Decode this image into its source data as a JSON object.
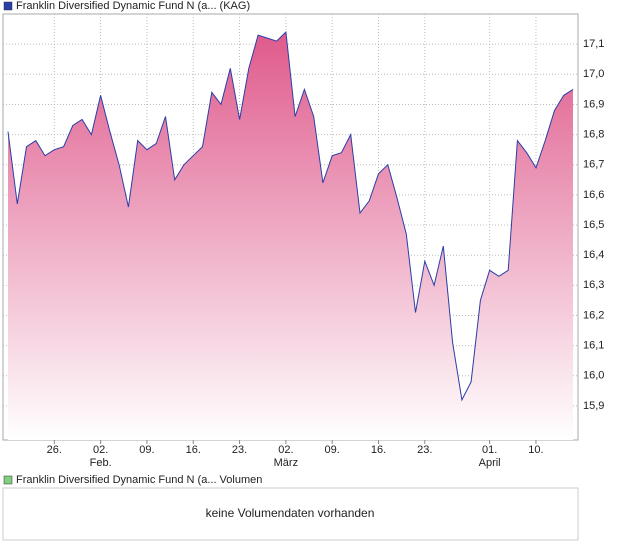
{
  "chart_data": {
    "type": "area",
    "categories": [
      null,
      null,
      null,
      null,
      null,
      "26.",
      null,
      null,
      null,
      null,
      "02.",
      null,
      null,
      null,
      null,
      "09.",
      null,
      null,
      null,
      null,
      "16.",
      null,
      null,
      null,
      null,
      "23.",
      null,
      null,
      null,
      null,
      "02.",
      null,
      null,
      null,
      null,
      "09.",
      null,
      null,
      null,
      null,
      "16.",
      null,
      null,
      null,
      null,
      "23.",
      null,
      null,
      null,
      null,
      null,
      null,
      "01.",
      null,
      null,
      null,
      null,
      "10.",
      null,
      null,
      null,
      null
    ],
    "month_categories": [
      null,
      null,
      null,
      null,
      null,
      null,
      null,
      null,
      null,
      null,
      "Feb.",
      null,
      null,
      null,
      null,
      null,
      null,
      null,
      null,
      null,
      null,
      null,
      null,
      null,
      null,
      null,
      null,
      null,
      null,
      null,
      "März",
      null,
      null,
      null,
      null,
      null,
      null,
      null,
      null,
      null,
      null,
      null,
      null,
      null,
      null,
      null,
      null,
      null,
      null,
      null,
      null,
      null,
      "April",
      null,
      null,
      null,
      null,
      null,
      null,
      null,
      null,
      null
    ],
    "series": [
      {
        "name": "Franklin Diversified Dynamic Fund N (a... (KAG)",
        "color": "#2a3ea8",
        "values": [
          16.81,
          16.57,
          16.76,
          16.78,
          16.73,
          16.75,
          16.76,
          16.83,
          16.85,
          16.8,
          16.93,
          16.81,
          16.7,
          16.56,
          16.78,
          16.75,
          16.77,
          16.86,
          16.65,
          16.7,
          16.73,
          16.76,
          16.94,
          16.9,
          17.02,
          16.85,
          17.02,
          17.13,
          17.12,
          17.11,
          17.14,
          16.86,
          16.95,
          16.86,
          16.64,
          16.73,
          16.74,
          16.8,
          16.54,
          16.58,
          16.67,
          16.7,
          16.59,
          16.47,
          16.21,
          16.38,
          16.3,
          16.43,
          16.11,
          15.92,
          15.98,
          16.25,
          16.35,
          16.33,
          16.35,
          16.78,
          16.74,
          16.69,
          16.78,
          16.88,
          16.93,
          16.95
        ]
      }
    ],
    "fill_top_color": "#df5a8c",
    "fill_bottom_color": "#ffffff",
    "ylim": [
      15.787,
      17.2
    ],
    "yticks": [
      {
        "value": 15.9,
        "label": "15,9"
      },
      {
        "value": 16.0,
        "label": "16,0"
      },
      {
        "value": 16.1,
        "label": "16,1"
      },
      {
        "value": 16.2,
        "label": "16,2"
      },
      {
        "value": 16.3,
        "label": "16,3"
      },
      {
        "value": 16.4,
        "label": "16,4"
      },
      {
        "value": 16.5,
        "label": "16,5"
      },
      {
        "value": 16.6,
        "label": "16,6"
      },
      {
        "value": 16.7,
        "label": "16,7"
      },
      {
        "value": 16.8,
        "label": "16,8"
      },
      {
        "value": 16.9,
        "label": "16,9"
      },
      {
        "value": 17.0,
        "label": "17,0"
      },
      {
        "value": 17.1,
        "label": "17,1"
      }
    ],
    "grid": true
  },
  "volume_panel": {
    "legend_label": "Franklin Diversified Dynamic Fund N (a... Volumen",
    "legend_color": "#7fcf7f",
    "message": "keine Volumendaten vorhanden"
  }
}
